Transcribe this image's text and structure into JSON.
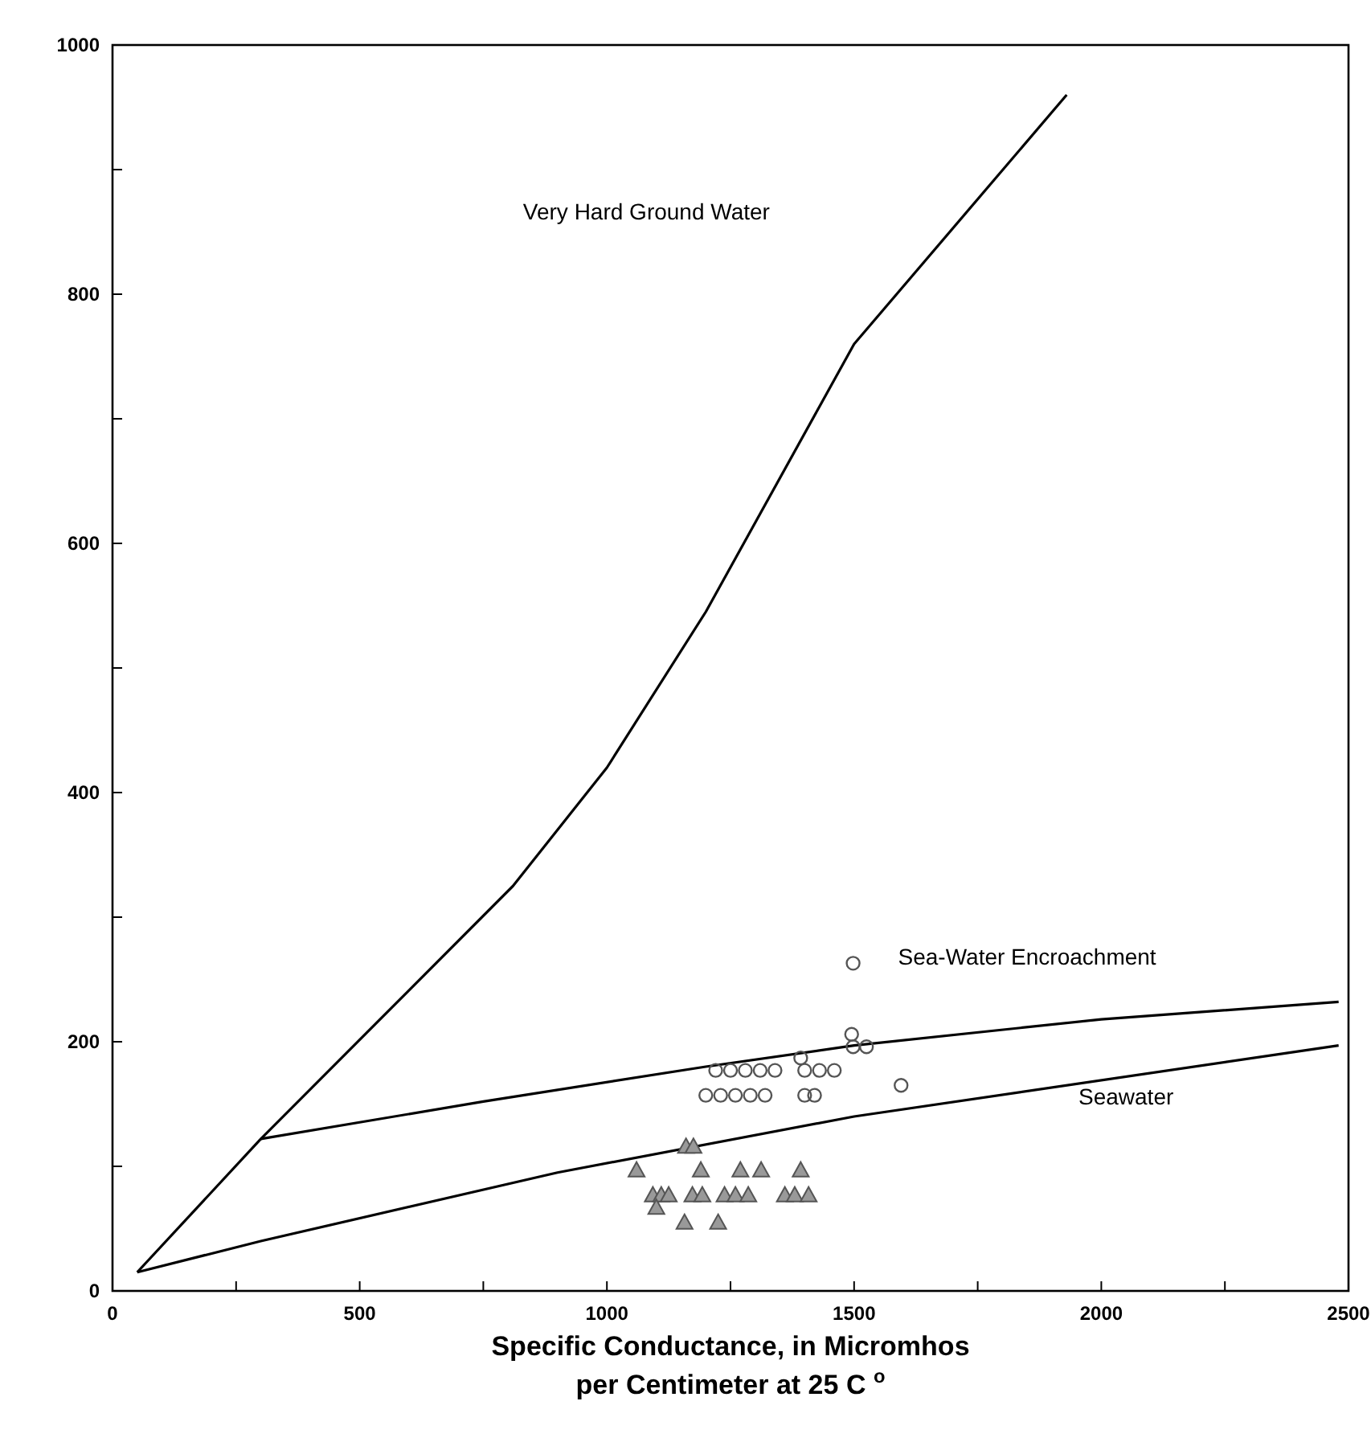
{
  "chart_data": {
    "type": "scatter",
    "xlabel": "Specific Conductance, in Micromhos\nper Centimeter at 25 C $^{o}$",
    "xlim": [
      0,
      2500
    ],
    "ylim": [
      0,
      1000
    ],
    "xticks": [
      0,
      {
        "value": 250,
        "label": null
      },
      500,
      {
        "value": 750,
        "label": null
      },
      1000,
      {
        "value": 1250,
        "label": null
      },
      1500,
      {
        "value": 1750,
        "label": null
      },
      2000,
      {
        "value": 2250,
        "label": null
      },
      2500
    ],
    "yticks": [
      0,
      {
        "value": 100,
        "label": null
      },
      200,
      {
        "value": 300,
        "label": null
      },
      400,
      {
        "value": 500,
        "label": null
      },
      600,
      {
        "value": 700,
        "label": null
      },
      800,
      {
        "value": 900,
        "label": null
      },
      1000
    ],
    "grid": false,
    "series": [
      {
        "type": "line",
        "color": "#000000",
        "x": [
          50,
          300,
          810,
          1000,
          1200,
          1500,
          1930
        ],
        "values": [
          15,
          122,
          325,
          420,
          545,
          760,
          960
        ]
      },
      {
        "type": "line",
        "color": "#000000",
        "x": [
          300,
          750,
          1200,
          1500,
          2000,
          2480
        ],
        "values": [
          122,
          152,
          180,
          197,
          218,
          232
        ]
      },
      {
        "type": "line",
        "color": "#000000",
        "x": [
          50,
          300,
          900,
          1500,
          2480
        ],
        "values": [
          15,
          40,
          95,
          140,
          197
        ]
      },
      {
        "color": "#555555",
        "marker": "circle",
        "x": [
          1498,
          1495,
          1595,
          1392,
          1498,
          1525,
          1220,
          1250,
          1280,
          1310,
          1340,
          1400,
          1430,
          1460,
          1200,
          1230,
          1260,
          1290,
          1320,
          1400,
          1420
        ],
        "values": [
          263,
          206,
          165,
          187,
          196,
          196,
          177,
          177,
          177,
          177,
          177,
          177,
          177,
          177,
          157,
          157,
          157,
          157,
          157,
          157,
          157
        ]
      },
      {
        "color": "#555555",
        "marker": "triangle",
        "x": [
          1160,
          1175,
          1060,
          1190,
          1270,
          1312,
          1392,
          1093,
          1110,
          1125,
          1173,
          1193,
          1238,
          1260,
          1286,
          1360,
          1380,
          1408,
          1100,
          1157,
          1225
        ],
        "values": [
          116,
          116,
          97,
          97,
          97,
          97,
          97,
          77,
          77,
          77,
          77,
          77,
          77,
          77,
          77,
          77,
          77,
          77,
          67,
          55,
          55
        ]
      }
    ],
    "annotations": [
      "Very Hard Ground Water",
      "Sea-Water Encroachment",
      "Seawater"
    ]
  }
}
